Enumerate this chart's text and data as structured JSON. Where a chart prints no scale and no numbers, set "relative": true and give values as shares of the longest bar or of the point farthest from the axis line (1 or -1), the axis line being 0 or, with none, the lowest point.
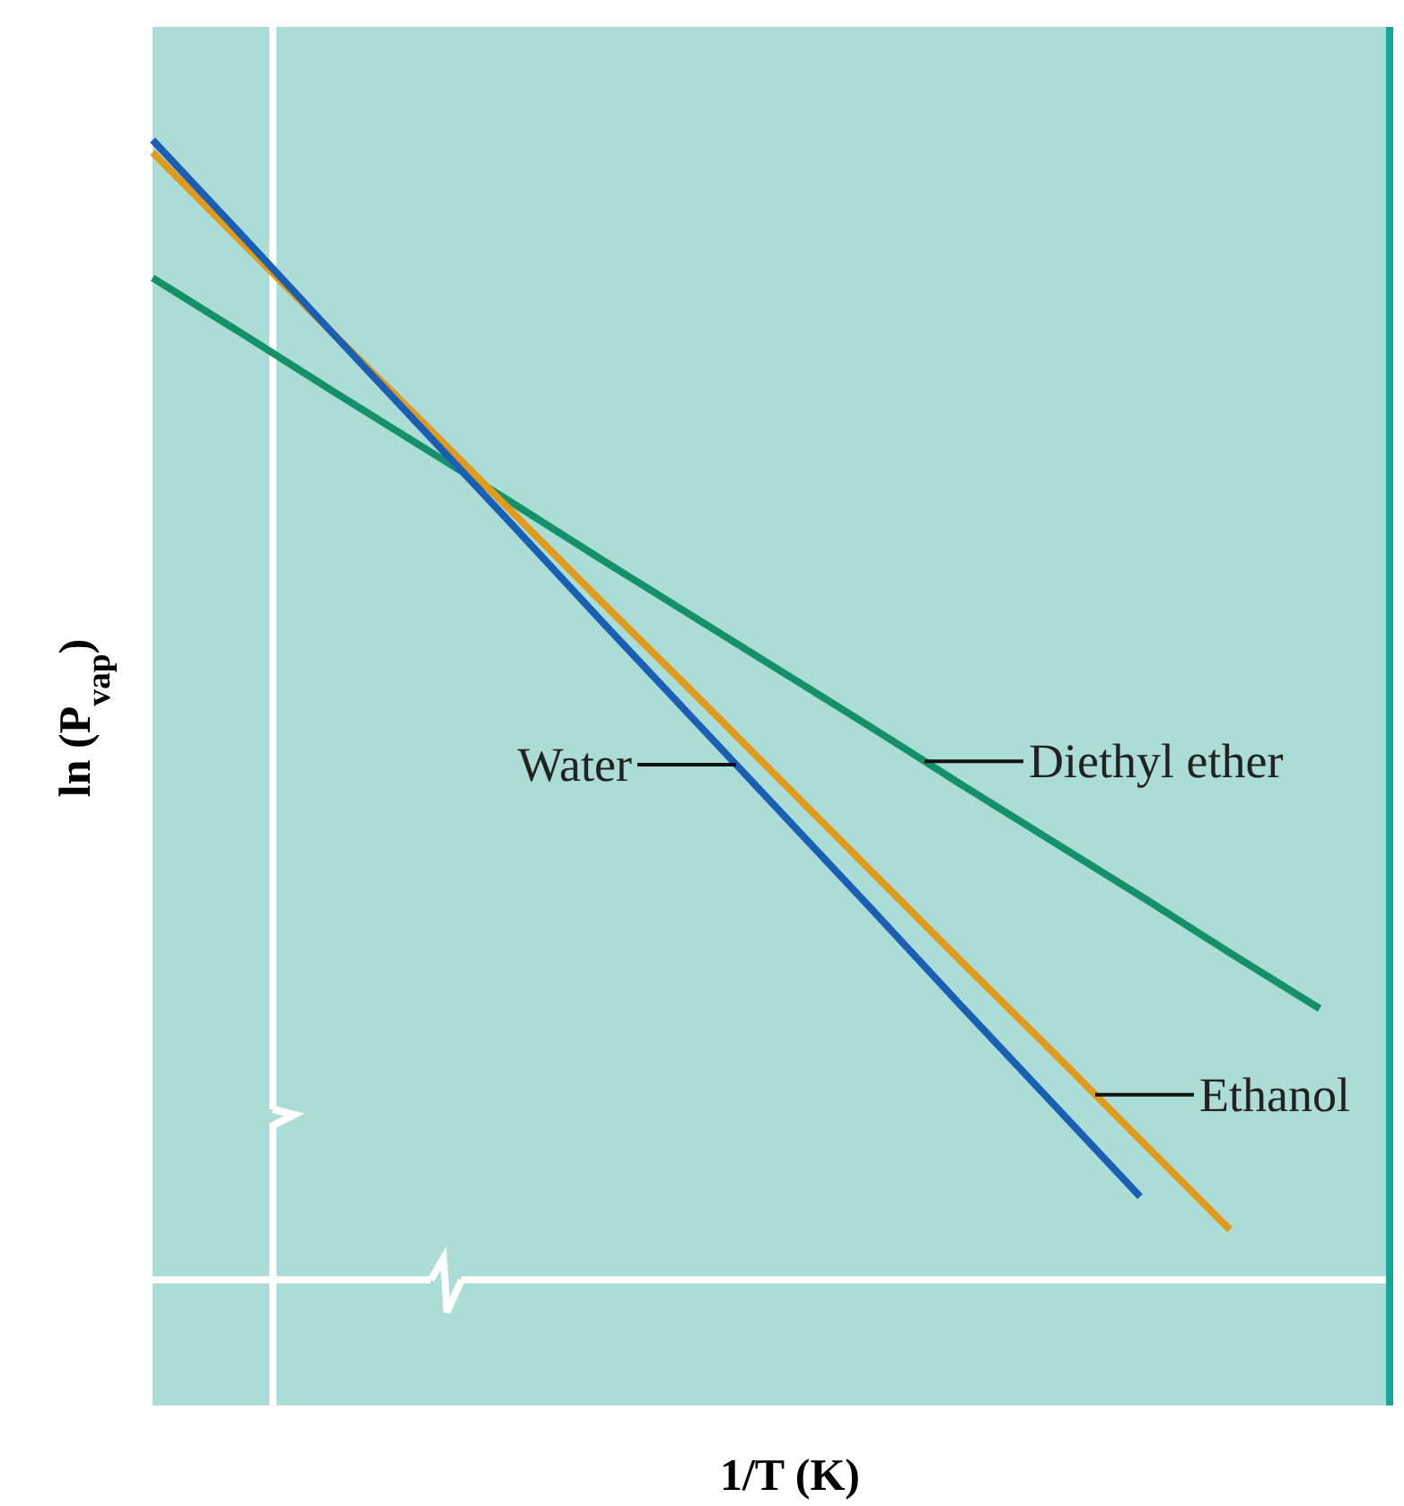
{
  "chart_data": {
    "type": "line",
    "relative": true,
    "xlabel": "1/T (K)",
    "ylabel": "ln (P$_{vap}$)",
    "legend": false,
    "marker": "none",
    "line_style": "solid",
    "categories": [
      null,
      null,
      null,
      null,
      null,
      null,
      null,
      null,
      null,
      null,
      null,
      null,
      null,
      null
    ],
    "series": [
      {
        "name": "Water",
        "color": "#1a5fb4",
        "values": [
          1,
          0.916,
          0.831,
          0.747,
          0.663,
          0.578,
          0.494,
          0.41,
          0.326,
          0.241,
          0.157,
          0.073,
          null,
          null
        ]
      },
      {
        "name": "Ethanol",
        "color": "#e09a1c",
        "values": [
          0.989,
          0.91,
          0.831,
          0.753,
          0.674,
          0.595,
          0.517,
          0.438,
          0.359,
          0.28,
          0.202,
          0.123,
          0.044,
          null
        ]
      },
      {
        "name": "Diethyl ether",
        "color": "#15916a",
        "values": [
          0.879,
          0.83,
          0.78,
          0.731,
          0.682,
          0.632,
          0.583,
          0.534,
          0.485,
          0.435,
          0.386,
          0.337,
          0.287,
          0.238
        ]
      }
    ]
  }
}
